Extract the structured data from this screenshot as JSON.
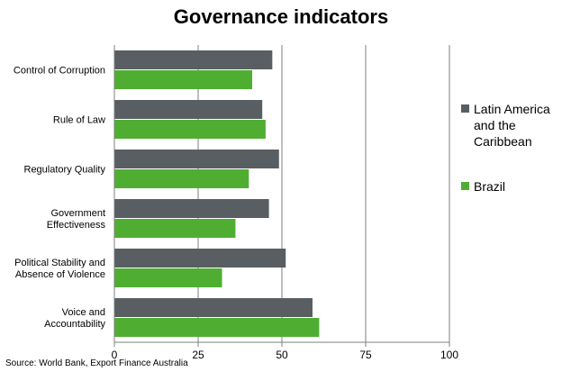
{
  "chart_data": {
    "type": "bar",
    "orientation": "horizontal",
    "title": "Governance indicators",
    "categories": [
      "Control of Corruption",
      "Rule of Law",
      "Regulatory Quality",
      "Government Effectiveness",
      "Political Stability and Absence of Violence",
      "Voice and Accountability"
    ],
    "category_lines": [
      [
        "Control of Corruption"
      ],
      [
        "Rule of Law"
      ],
      [
        "Regulatory Quality"
      ],
      [
        "Government",
        "Effectiveness"
      ],
      [
        "Political Stability and",
        "Absence of Violence"
      ],
      [
        "Voice and",
        "Accountability"
      ]
    ],
    "series": [
      {
        "name": "Latin America and the Caribbean",
        "color": "#595e62",
        "values": [
          47,
          44,
          49,
          46,
          51,
          59
        ]
      },
      {
        "name": "Brazil",
        "color": "#4fae32",
        "values": [
          41,
          45,
          40,
          36,
          32,
          61
        ]
      }
    ],
    "xlim": [
      0,
      100
    ],
    "xticks": [
      "0",
      "25",
      "50",
      "75",
      "100"
    ],
    "grid": true,
    "legend_position": "right",
    "legend_lines": [
      [
        "Latin America",
        "and the",
        "Caribbean"
      ],
      [
        "Brazil"
      ]
    ],
    "source": "Source: World Bank, Export Finance Australia"
  }
}
